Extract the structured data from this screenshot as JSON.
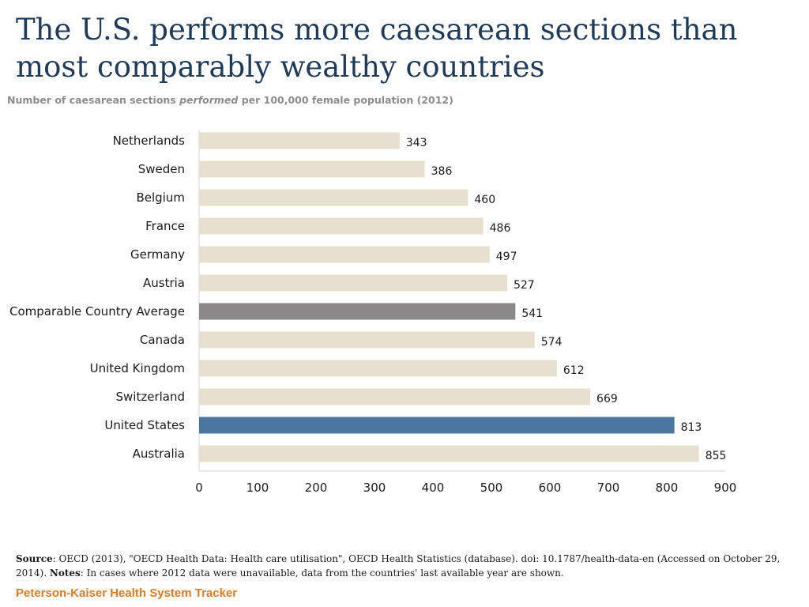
{
  "title": "The U.S. performs more caesarean sections than most comparably wealthy countries",
  "subtitle": {
    "before": "Number of caesarean sections ",
    "emph": "performed",
    "after": " per 100,000 female population (2012)"
  },
  "chart_data": {
    "type": "bar",
    "orientation": "horizontal",
    "title": "The U.S. performs more caesarean sections than most comparably wealthy countries",
    "subtitle": "Number of caesarean sections performed per 100,000 female population (2012)",
    "categories": [
      "Netherlands",
      "Sweden",
      "Belgium",
      "France",
      "Germany",
      "Austria",
      "Comparable Country Average",
      "Canada",
      "United Kingdom",
      "Switzerland",
      "United States",
      "Australia"
    ],
    "values": [
      343,
      386,
      460,
      486,
      497,
      527,
      541,
      574,
      612,
      669,
      813,
      855
    ],
    "highlight": {
      "Comparable Country Average": "#8a8888",
      "United States": "#4a77a0"
    },
    "default_color": "#e5e0cf",
    "xlim": [
      0,
      900
    ],
    "xticks": [
      0,
      100,
      200,
      300,
      400,
      500,
      600,
      700,
      800,
      900
    ],
    "xlabel": "",
    "ylabel": "",
    "grid": false,
    "data_labels": true
  },
  "source": {
    "source_label": "Source",
    "source_text": ": OECD (2013), \"OECD Health Data: Health care utilisation\", OECD Health Statistics (database).  doi: 10.1787/health-data-en (Accessed on October 29, 2014). ",
    "notes_label": "Notes",
    "notes_text": ": In cases where 2012 data were unavailable, data from the countries' last available year are shown."
  },
  "brand": "Peterson-Kaiser Health System Tracker",
  "colors": {
    "title": "#1f3b57",
    "subtitle": "#8c8c8c",
    "brand": "#e07b1f",
    "axis": "#d9d9d9"
  }
}
